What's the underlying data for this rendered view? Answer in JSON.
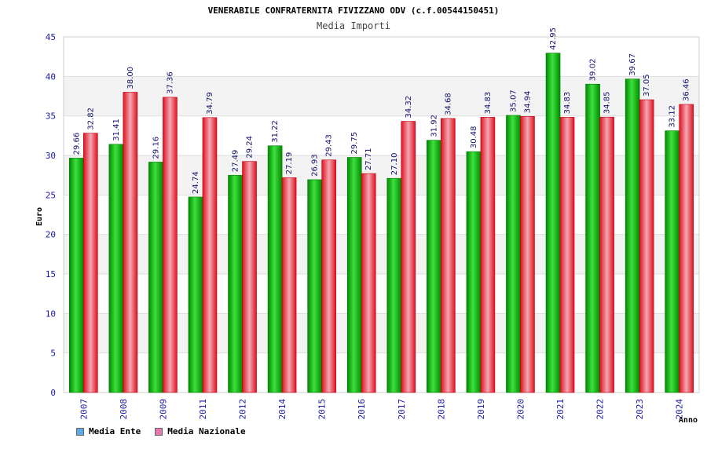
{
  "chart_data": {
    "type": "bar",
    "title": "VENERABILE CONFRATERNITA FIVIZZANO ODV (c.f.00544150451)",
    "subtitle": "Media Importi",
    "xlabel": "Anno",
    "ylabel": "Euro",
    "ylim": [
      0,
      45
    ],
    "yticks": [
      0,
      5,
      10,
      15,
      20,
      25,
      30,
      35,
      40,
      45
    ],
    "grid": true,
    "legend_position": "bottom-left",
    "categories": [
      "2007",
      "2008",
      "2009",
      "2011",
      "2012",
      "2014",
      "2015",
      "2016",
      "2017",
      "2018",
      "2019",
      "2020",
      "2021",
      "2022",
      "2023",
      "2024"
    ],
    "series": [
      {
        "name": "Media Ente",
        "legend_color": "#5fa8e8",
        "bar_color": "#00b400",
        "values": [
          29.66,
          31.41,
          29.16,
          24.74,
          27.49,
          31.22,
          26.93,
          29.75,
          27.1,
          31.92,
          30.48,
          35.07,
          42.95,
          39.02,
          39.67,
          33.12
        ],
        "labels": [
          "29.66",
          "31.41",
          "29.16",
          "24.74",
          "27.49",
          "31.22",
          "26.93",
          "29.75",
          "27.10",
          "31.92",
          "30.48",
          "35.07",
          "42.95",
          "39.02",
          "39.67",
          "33.12"
        ]
      },
      {
        "name": "Media Nazionale",
        "legend_color": "#e07ab0",
        "bar_color": "#e8202e",
        "values": [
          32.82,
          38.0,
          37.36,
          34.79,
          29.24,
          27.19,
          29.43,
          27.71,
          34.32,
          34.68,
          34.83,
          34.94,
          34.83,
          34.85,
          37.05,
          36.46
        ],
        "labels": [
          "32.82",
          "38.00",
          "37.36",
          "34.79",
          "29.24",
          "27.19",
          "29.43",
          "27.71",
          "34.32",
          "34.68",
          "34.83",
          "34.94",
          "34.83",
          "34.85",
          "37.05",
          "36.46"
        ]
      }
    ]
  }
}
